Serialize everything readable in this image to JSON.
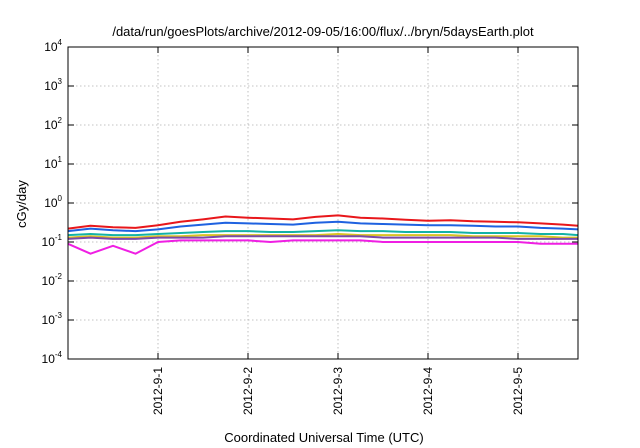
{
  "chart_data": {
    "type": "line",
    "title": "/data/run/goesPlots/archive/2012-09-05/16:00/flux/../bryn/5daysEarth.plot",
    "xlabel": "Coordinated Universal Time (UTC)",
    "ylabel": "cGy/day",
    "yscale": "log",
    "ylim": [
      0.0001,
      10000
    ],
    "yticks": [
      {
        "mant": "10",
        "exp": "-4",
        "value": 0.0001
      },
      {
        "mant": "10",
        "exp": "-3",
        "value": 0.001
      },
      {
        "mant": "10",
        "exp": "-2",
        "value": 0.01
      },
      {
        "mant": "10",
        "exp": "-1",
        "value": 0.1
      },
      {
        "mant": "10",
        "exp": "0",
        "value": 1
      },
      {
        "mant": "10",
        "exp": "1",
        "value": 10
      },
      {
        "mant": "10",
        "exp": "2",
        "value": 100
      },
      {
        "mant": "10",
        "exp": "3",
        "value": 1000
      },
      {
        "mant": "10",
        "exp": "4",
        "value": 10000
      }
    ],
    "xlim": [
      "2012-08-31 00:00",
      "2012-09-05 16:00"
    ],
    "xticks": [
      {
        "label": "2012-9-1",
        "value": "2012-09-01"
      },
      {
        "label": "2012-9-2",
        "value": "2012-09-02"
      },
      {
        "label": "2012-9-3",
        "value": "2012-09-03"
      },
      {
        "label": "2012-9-4",
        "value": "2012-09-04"
      },
      {
        "label": "2012-9-5",
        "value": "2012-09-05"
      }
    ],
    "grid": true,
    "x": [
      "2012-08-31 00:00",
      "2012-08-31 06:00",
      "2012-08-31 12:00",
      "2012-08-31 18:00",
      "2012-09-01 00:00",
      "2012-09-01 06:00",
      "2012-09-01 12:00",
      "2012-09-01 18:00",
      "2012-09-02 00:00",
      "2012-09-02 06:00",
      "2012-09-02 12:00",
      "2012-09-02 18:00",
      "2012-09-03 00:00",
      "2012-09-03 06:00",
      "2012-09-03 12:00",
      "2012-09-03 18:00",
      "2012-09-04 00:00",
      "2012-09-04 06:00",
      "2012-09-04 12:00",
      "2012-09-04 18:00",
      "2012-09-05 00:00",
      "2012-09-05 06:00",
      "2012-09-05 12:00",
      "2012-09-05 16:00"
    ],
    "series": [
      {
        "color": "#e8171b",
        "values": [
          0.22,
          0.26,
          0.24,
          0.23,
          0.27,
          0.33,
          0.38,
          0.45,
          0.42,
          0.4,
          0.38,
          0.44,
          0.48,
          0.42,
          0.4,
          0.37,
          0.35,
          0.36,
          0.34,
          0.33,
          0.32,
          0.3,
          0.28,
          0.26
        ]
      },
      {
        "color": "#1f62e0",
        "values": [
          0.19,
          0.22,
          0.2,
          0.19,
          0.21,
          0.25,
          0.28,
          0.31,
          0.3,
          0.29,
          0.28,
          0.31,
          0.33,
          0.3,
          0.29,
          0.28,
          0.27,
          0.27,
          0.26,
          0.25,
          0.25,
          0.23,
          0.22,
          0.21
        ]
      },
      {
        "color": "#13b2a6",
        "values": [
          0.15,
          0.16,
          0.15,
          0.15,
          0.16,
          0.17,
          0.18,
          0.19,
          0.19,
          0.18,
          0.18,
          0.19,
          0.2,
          0.19,
          0.19,
          0.18,
          0.18,
          0.18,
          0.17,
          0.17,
          0.17,
          0.16,
          0.16,
          0.15
        ]
      },
      {
        "color": "#d9c321",
        "values": [
          0.13,
          0.14,
          0.13,
          0.13,
          0.14,
          0.14,
          0.15,
          0.15,
          0.15,
          0.15,
          0.15,
          0.15,
          0.16,
          0.15,
          0.15,
          0.15,
          0.15,
          0.15,
          0.14,
          0.14,
          0.14,
          0.14,
          0.13,
          0.13
        ]
      },
      {
        "color": "#7b4aa8",
        "values": [
          0.12,
          0.13,
          0.12,
          0.12,
          0.13,
          0.13,
          0.13,
          0.14,
          0.14,
          0.14,
          0.14,
          0.14,
          0.14,
          0.14,
          0.13,
          0.13,
          0.13,
          0.13,
          0.13,
          0.13,
          0.12,
          0.12,
          0.12,
          0.12
        ]
      },
      {
        "color": "#ef1fe3",
        "values": [
          0.09,
          0.05,
          0.08,
          0.05,
          0.1,
          0.11,
          0.11,
          0.11,
          0.11,
          0.1,
          0.11,
          0.11,
          0.11,
          0.11,
          0.1,
          0.1,
          0.1,
          0.1,
          0.1,
          0.1,
          0.1,
          0.09,
          0.09,
          0.09
        ]
      }
    ]
  }
}
